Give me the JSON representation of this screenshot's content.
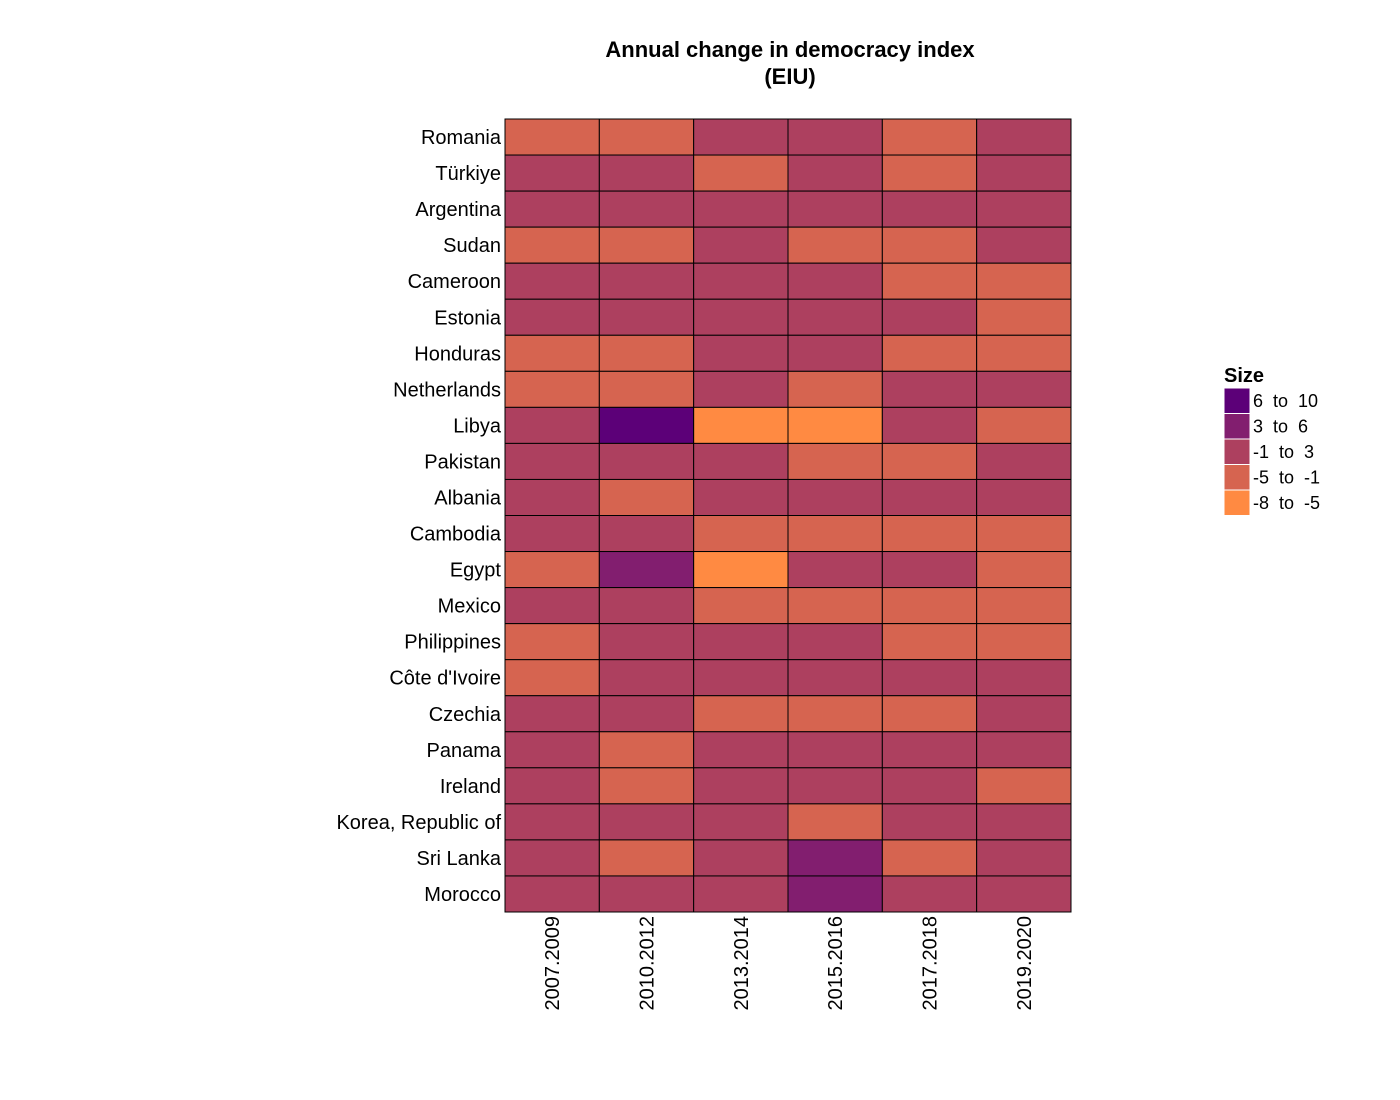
{
  "chart_data": {
    "type": "heatmap",
    "title": "Annual change in democracy index",
    "subtitle": "(EIU)",
    "x_categories": [
      "2007.2009",
      "2010.2012",
      "2013.2014",
      "2015.2016",
      "2017.2018",
      "2019.2020"
    ],
    "y_categories": [
      "Romania",
      "Türkiye",
      "Argentina",
      "Sudan",
      "Cameroon",
      "Estonia",
      "Honduras",
      "Netherlands",
      "Libya",
      "Pakistan",
      "Albania",
      "Cambodia",
      "Egypt",
      "Mexico",
      "Philippines",
      "Côte d'Ivoire",
      "Czechia",
      "Panama",
      "Ireland",
      "Korea, Republic of",
      "Sri Lanka",
      "Morocco"
    ],
    "legend": {
      "title": "Size",
      "position": "right",
      "bins": [
        {
          "label": "6  to  10",
          "color": "#5c0078"
        },
        {
          "label": "3  to  6",
          "color": "#821e6f"
        },
        {
          "label": "-1  to  3",
          "color": "#ad405f"
        },
        {
          "label": "-5  to  -1",
          "color": "#d66450"
        },
        {
          "label": "-8  to  -5",
          "color": "#ff8a42"
        }
      ]
    },
    "cell_bins": [
      [
        3,
        3,
        2,
        2,
        3,
        2
      ],
      [
        2,
        2,
        3,
        2,
        3,
        2
      ],
      [
        2,
        2,
        2,
        2,
        2,
        2
      ],
      [
        3,
        3,
        2,
        3,
        3,
        2
      ],
      [
        2,
        2,
        2,
        2,
        3,
        3
      ],
      [
        2,
        2,
        2,
        2,
        2,
        3
      ],
      [
        3,
        3,
        2,
        2,
        3,
        3
      ],
      [
        3,
        3,
        2,
        3,
        2,
        2
      ],
      [
        2,
        0,
        4,
        4,
        2,
        3
      ],
      [
        2,
        2,
        2,
        3,
        3,
        2
      ],
      [
        2,
        3,
        2,
        2,
        2,
        2
      ],
      [
        2,
        2,
        3,
        3,
        3,
        3
      ],
      [
        3,
        1,
        4,
        2,
        2,
        3
      ],
      [
        2,
        2,
        3,
        3,
        3,
        3
      ],
      [
        3,
        2,
        2,
        2,
        3,
        3
      ],
      [
        3,
        2,
        2,
        2,
        2,
        2
      ],
      [
        2,
        2,
        3,
        3,
        3,
        2
      ],
      [
        2,
        3,
        2,
        2,
        2,
        2
      ],
      [
        2,
        3,
        2,
        2,
        2,
        3
      ],
      [
        2,
        2,
        2,
        3,
        2,
        2
      ],
      [
        2,
        3,
        2,
        1,
        3,
        2
      ],
      [
        2,
        2,
        2,
        1,
        2,
        2
      ]
    ],
    "grid": false
  }
}
